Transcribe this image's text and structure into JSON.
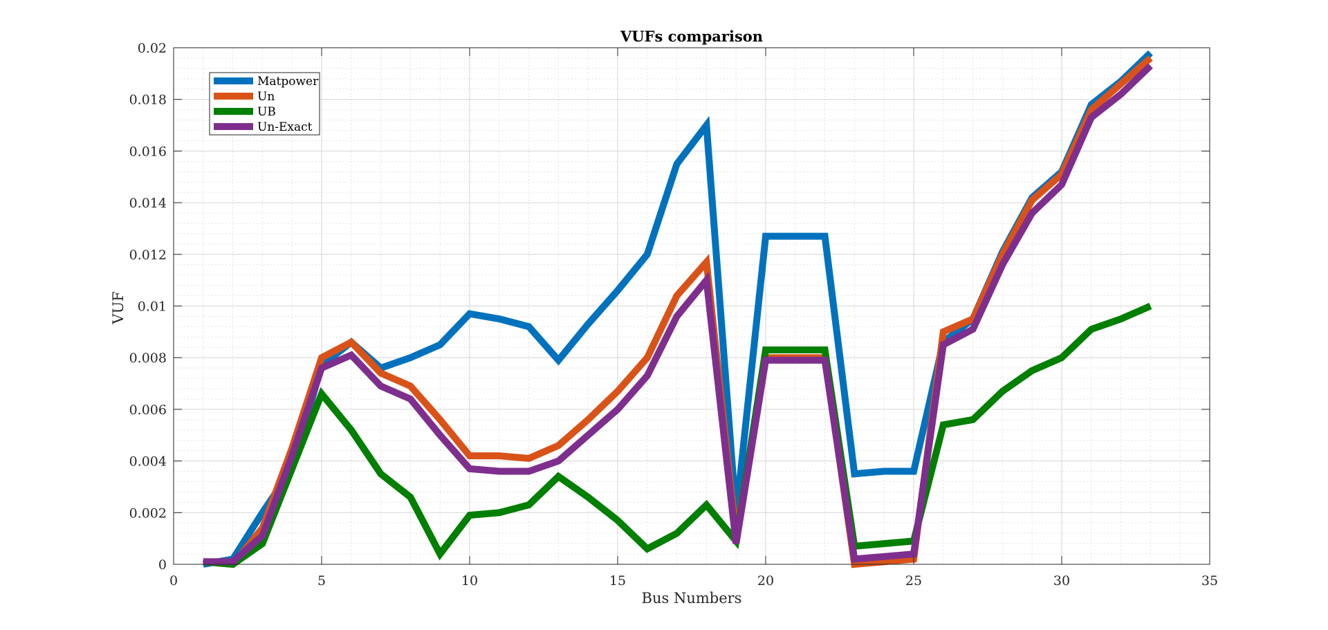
{
  "chart_data": {
    "type": "line",
    "title": "VUFs comparison",
    "xlabel": "Bus Numbers",
    "ylabel": "VUF",
    "xlim": [
      0,
      35
    ],
    "ylim": [
      0,
      0.02
    ],
    "xticks": [
      0,
      5,
      10,
      15,
      20,
      25,
      30,
      35
    ],
    "xtick_labels": [
      "0",
      "5",
      "10",
      "15",
      "20",
      "25",
      "30",
      "35"
    ],
    "yticks": [
      0,
      0.002,
      0.004,
      0.006,
      0.008,
      0.01,
      0.012,
      0.014,
      0.016,
      0.018,
      0.02
    ],
    "ytick_labels": [
      "0",
      "0.002",
      "0.004",
      "0.006",
      "0.008",
      "0.01",
      "0.012",
      "0.014",
      "0.016",
      "0.018",
      "0.02"
    ],
    "grid": true,
    "minor_grid": true,
    "legend_position": "top-left",
    "x": [
      1,
      2,
      3,
      4,
      5,
      6,
      7,
      8,
      9,
      10,
      11,
      12,
      13,
      14,
      15,
      16,
      17,
      18,
      19,
      20,
      21,
      22,
      23,
      24,
      25,
      26,
      27,
      28,
      29,
      30,
      31,
      32,
      33
    ],
    "series": [
      {
        "name": "Matpower",
        "color": "#0072BD",
        "values": [
          0,
          0.0002,
          0.002,
          0.0037,
          0.0077,
          0.0086,
          0.0076,
          0.008,
          0.0085,
          0.0097,
          0.0095,
          0.0092,
          0.0079,
          0.0093,
          0.0106,
          0.012,
          0.0155,
          0.017,
          0.0019,
          0.0127,
          0.0127,
          0.0127,
          0.0035,
          0.0036,
          0.0036,
          0.0086,
          0.0095,
          0.0121,
          0.0142,
          0.0152,
          0.0178,
          0.0187,
          0.0198
        ]
      },
      {
        "name": "Un",
        "color": "#D95319",
        "values": [
          0.0001,
          0,
          0.0014,
          0.0045,
          0.008,
          0.0086,
          0.0074,
          0.0069,
          0.0056,
          0.0042,
          0.0042,
          0.0041,
          0.0046,
          0.0056,
          0.0067,
          0.008,
          0.0104,
          0.0117,
          0.0011,
          0.008,
          0.008,
          0.008,
          0,
          0.0001,
          0.0002,
          0.009,
          0.0095,
          0.012,
          0.0141,
          0.0151,
          0.0176,
          0.0186,
          0.0196
        ]
      },
      {
        "name": "UB",
        "color": "#007F00",
        "values": [
          0.0001,
          0,
          0.0008,
          0.0037,
          0.0066,
          0.0052,
          0.0035,
          0.0026,
          0.0004,
          0.0019,
          0.002,
          0.0023,
          0.0034,
          0.0026,
          0.0017,
          0.0006,
          0.0012,
          0.0023,
          0.0009,
          0.0083,
          0.0083,
          0.0083,
          0.0007,
          0.0008,
          0.0009,
          0.0054,
          0.0056,
          0.0067,
          0.0075,
          0.008,
          0.0091,
          0.0095,
          0.01
        ]
      },
      {
        "name": "Un-Exact",
        "color": "#7E2F8E",
        "values": [
          0.0001,
          0.0001,
          0.0011,
          0.0042,
          0.0076,
          0.0081,
          0.0069,
          0.0064,
          0.005,
          0.0037,
          0.0036,
          0.0036,
          0.004,
          0.005,
          0.006,
          0.0073,
          0.0096,
          0.011,
          0.0008,
          0.0079,
          0.0079,
          0.0079,
          0.0002,
          0.0003,
          0.0004,
          0.0085,
          0.0091,
          0.0116,
          0.0136,
          0.0147,
          0.0173,
          0.0182,
          0.0193
        ]
      }
    ]
  }
}
